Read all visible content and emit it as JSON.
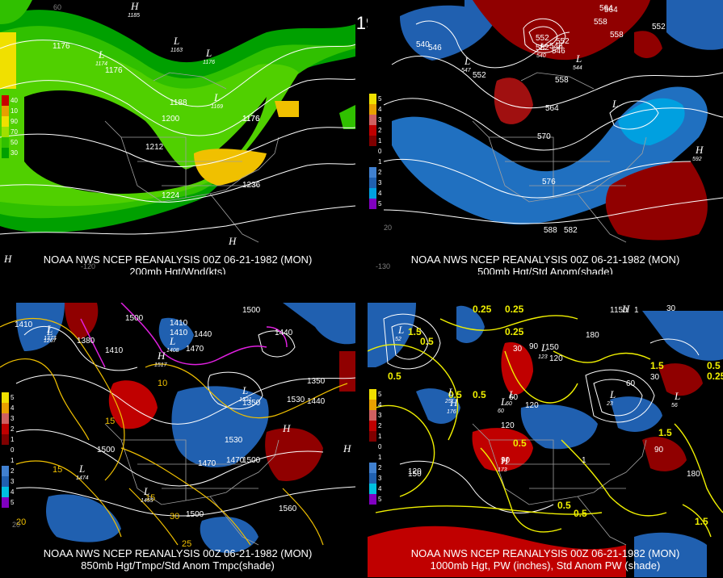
{
  "title": "00Z 06-21-1982 (MON)",
  "panels": [
    {
      "id": "p1",
      "caption1": "NOAA NWS NCEP REANALYSIS 00Z 06-21-1982 (MON)",
      "caption2": "200mb Hgt/Wnd(kts)",
      "legend": [
        {
          "label": "40",
          "color": "#c80000"
        },
        {
          "label": "10",
          "color": "#e8a000"
        },
        {
          "label": "90",
          "color": "#f0e000"
        },
        {
          "label": "70",
          "color": "#a0e000"
        },
        {
          "label": "50",
          "color": "#30c000"
        },
        {
          "label": "30",
          "color": "#00a000"
        }
      ],
      "contour_labels": [
        "1176",
        "1176",
        "1176",
        "1188",
        "1200",
        "1212",
        "1224",
        "1236",
        "1176"
      ],
      "lows": [
        "L",
        "L",
        "L",
        "L"
      ],
      "lows_values": [
        "1174",
        "1163",
        "1176",
        "1169"
      ],
      "highs": [
        "H",
        "H",
        "H"
      ],
      "highs_values": [
        "1185"
      ],
      "lon_labels": [
        "60",
        "-120"
      ]
    },
    {
      "id": "p2",
      "caption1": "NOAA NWS NCEP REANALYSIS 00Z 06-21-1982 (MON)",
      "caption2": "500mb Hgt/Std Anom(shade)",
      "legend": [
        {
          "label": "5",
          "color": "#f0e000"
        },
        {
          "label": "4",
          "color": "#e8a000"
        },
        {
          "label": "3",
          "color": "#d06060"
        },
        {
          "label": "2",
          "color": "#c00000"
        },
        {
          "label": "1",
          "color": "#800000"
        },
        {
          "label": "0",
          "color": "#000000"
        },
        {
          "label": "1",
          "color": "#000000"
        },
        {
          "label": "2",
          "color": "#4080d0"
        },
        {
          "label": "3",
          "color": "#2060b0"
        },
        {
          "label": "4",
          "color": "#00a0e0"
        },
        {
          "label": "5",
          "color": "#8000c0"
        }
      ],
      "contour_labels": [
        "540",
        "546",
        "552",
        "558",
        "564",
        "570",
        "576",
        "582",
        "588",
        "564",
        "558",
        "552",
        "552",
        "546",
        "552",
        "558",
        "564",
        "546",
        "552"
      ],
      "lows": [
        "L",
        "L",
        "L",
        "L"
      ],
      "lows_values": [
        "547",
        "540",
        "544"
      ],
      "highs": [
        "H"
      ],
      "highs_values": [
        "592"
      ],
      "lon_labels": [
        "-130",
        "20"
      ]
    },
    {
      "id": "p3",
      "caption1": "NOAA NWS NCEP REANALYSIS 00Z 06-21-1982 (MON)",
      "caption2": "850mb Hgt/Tmpc/Std Anom Tmpc(shade)",
      "legend": [
        {
          "label": "5",
          "color": "#f0e000"
        },
        {
          "label": "4",
          "color": "#e8a000"
        },
        {
          "label": "3",
          "color": "#d06060"
        },
        {
          "label": "2",
          "color": "#c00000"
        },
        {
          "label": "1",
          "color": "#800000"
        },
        {
          "label": "0",
          "color": "#000000"
        },
        {
          "label": "1",
          "color": "#000000"
        },
        {
          "label": "2",
          "color": "#4080d0"
        },
        {
          "label": "3",
          "color": "#2060b0"
        },
        {
          "label": "4",
          "color": "#00c0e0"
        },
        {
          "label": "5",
          "color": "#8000c0"
        }
      ],
      "contour_labels": [
        "1410",
        "1380",
        "1500",
        "1410",
        "1410",
        "1440",
        "1500",
        "1470",
        "1440",
        "1410",
        "1350",
        "1350",
        "1440",
        "1470",
        "1500",
        "1530",
        "1560",
        "1500",
        "1470",
        "1500",
        "1530",
        "15",
        "15",
        "10",
        "15",
        "30",
        "25",
        "20"
      ],
      "lows": [
        "L",
        "L",
        "L",
        "L",
        "L",
        "L"
      ],
      "lows_values": [
        "1373",
        "1267",
        "1408",
        "1321",
        "1474",
        "1455"
      ],
      "highs": [
        "H",
        "H",
        "H"
      ],
      "highs_values": [
        "1517"
      ],
      "lon_labels": [
        "20"
      ]
    },
    {
      "id": "p4",
      "caption1": "NOAA NWS NCEP REANALYSIS 00Z 06-21-1982 (MON)",
      "caption2": "1000mb Hgt, PW (inches), Std Anom PW (shade)",
      "legend": [
        {
          "label": "5",
          "color": "#f0e000"
        },
        {
          "label": "4",
          "color": "#e8a000"
        },
        {
          "label": "3",
          "color": "#d06060"
        },
        {
          "label": "2",
          "color": "#c00000"
        },
        {
          "label": "1",
          "color": "#800000"
        },
        {
          "label": "0",
          "color": "#000000"
        },
        {
          "label": "1",
          "color": "#000000"
        },
        {
          "label": "2",
          "color": "#4080d0"
        },
        {
          "label": "3",
          "color": "#2060b0"
        },
        {
          "label": "4",
          "color": "#00c0e0"
        },
        {
          "label": "5",
          "color": "#8000c0"
        }
      ],
      "contour_labels": [
        "0.25",
        "0.25",
        "0.5",
        "0.25",
        "0.5",
        "0.5",
        "0.5",
        "0.25",
        "0.5",
        "0.5",
        "1.5",
        "1.5",
        "1.5",
        "0.5",
        "1",
        "1",
        "120",
        "180",
        "90",
        "120",
        "30",
        "30",
        "150",
        "120",
        "90",
        "60",
        "90",
        "150",
        "180",
        "60",
        "30",
        "150",
        "120",
        "1.5",
        "0.5",
        "1"
      ],
      "lows": [
        "L",
        "L",
        "L",
        "L",
        "L",
        "L",
        "L"
      ],
      "lows_values": [
        "52",
        "60",
        "123",
        "60",
        "23",
        "25",
        "56"
      ],
      "highs": [
        "H",
        "H",
        "H"
      ],
      "highs_values": [
        "176",
        "173"
      ],
      "lon_labels": []
    }
  ],
  "colors": {
    "background": "#000000",
    "coast": "#a0a0a0",
    "contour": "#ffffff",
    "temp_contour": "#f0c000",
    "pw_contour": "#f0f000",
    "magenta": "#e020e0"
  }
}
